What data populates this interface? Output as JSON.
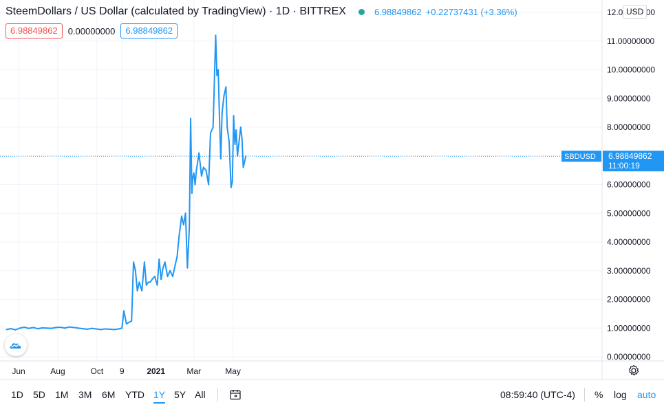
{
  "header": {
    "title": "SteemDollars / US Dollar (calculated by TradingView) · 1D · BITTREX",
    "last_price": "6.98849862",
    "change": "+0.22737431 (+3.36%)",
    "status_color": "#26a69a"
  },
  "ohlc": {
    "left_pill": "6.98849862",
    "middle": "0.00000000",
    "right_pill": "6.98849862"
  },
  "currency_badge": "USD",
  "price_label": {
    "symbol": "SBDUSD",
    "price": "6.98849862",
    "countdown": "11:00:19"
  },
  "colors": {
    "line": "#2196f3",
    "grid": "#f0f3fa",
    "text": "#131722",
    "accent": "#2196f3",
    "down": "#ef5350"
  },
  "bottom_bar": {
    "ranges": [
      "1D",
      "5D",
      "1M",
      "3M",
      "6M",
      "YTD",
      "1Y",
      "5Y",
      "All"
    ],
    "active_range": "1Y",
    "clock": "08:59:40 (UTC-4)",
    "percent_label": "%",
    "log_label": "log",
    "auto_label": "auto"
  },
  "icons": {
    "logo": "tradingview-logo-icon",
    "calendar": "calendar-goto-date-icon",
    "settings": "gear-icon"
  },
  "chart_data": {
    "type": "line",
    "series_name": "SBDUSD",
    "x_tick_labels": [
      "Jun",
      "Aug",
      "Oct",
      "9",
      "2021",
      "Mar",
      "May"
    ],
    "y_tick_labels": [
      "0.00000000",
      "1.00000000",
      "2.00000000",
      "3.00000000",
      "4.00000000",
      "5.00000000",
      "6.00000000",
      "7.00000000",
      "8.00000000",
      "9.00000000",
      "10.00000000",
      "11.00000000",
      "12.00000000"
    ],
    "ylim": [
      0,
      12
    ],
    "last_value": 6.98849862,
    "grid": true,
    "x": [
      "2020-05-13",
      "2020-05-20",
      "2020-05-27",
      "2020-06-03",
      "2020-06-10",
      "2020-06-17",
      "2020-06-24",
      "2020-07-01",
      "2020-07-08",
      "2020-07-15",
      "2020-07-22",
      "2020-07-29",
      "2020-08-05",
      "2020-08-12",
      "2020-08-19",
      "2020-08-26",
      "2020-09-02",
      "2020-09-09",
      "2020-09-16",
      "2020-09-23",
      "2020-09-30",
      "2020-10-07",
      "2020-10-14",
      "2020-10-21",
      "2020-10-28",
      "2020-11-04",
      "2020-11-09",
      "2020-11-12",
      "2020-11-16",
      "2020-11-20",
      "2020-11-24",
      "2020-11-27",
      "2020-11-30",
      "2020-12-03",
      "2020-12-06",
      "2020-12-10",
      "2020-12-14",
      "2020-12-17",
      "2020-12-20",
      "2020-12-23",
      "2020-12-26",
      "2020-12-30",
      "2021-01-03",
      "2021-01-06",
      "2021-01-09",
      "2021-01-12",
      "2021-01-15",
      "2021-01-19",
      "2021-01-23",
      "2021-01-27",
      "2021-01-31",
      "2021-02-03",
      "2021-02-06",
      "2021-02-10",
      "2021-02-13",
      "2021-02-16",
      "2021-02-19",
      "2021-02-22",
      "2021-02-24",
      "2021-02-26",
      "2021-02-27",
      "2021-03-01",
      "2021-03-03",
      "2021-03-05",
      "2021-03-09",
      "2021-03-13",
      "2021-03-16",
      "2021-03-20",
      "2021-03-24",
      "2021-03-27",
      "2021-03-31",
      "2021-04-04",
      "2021-04-06",
      "2021-04-08",
      "2021-04-10",
      "2021-04-12",
      "2021-04-14",
      "2021-04-17",
      "2021-04-20",
      "2021-04-22",
      "2021-04-25",
      "2021-04-28",
      "2021-04-30",
      "2021-05-02",
      "2021-05-04",
      "2021-05-06",
      "2021-05-08",
      "2021-05-10",
      "2021-05-13",
      "2021-05-15",
      "2021-05-17",
      "2021-05-19",
      "2021-05-21"
    ],
    "values": [
      0.95,
      0.98,
      0.94,
      1.0,
      1.03,
      0.99,
      1.02,
      0.98,
      1.01,
      1.0,
      0.99,
      1.02,
      1.03,
      1.0,
      1.04,
      1.02,
      1.0,
      0.98,
      0.96,
      0.99,
      0.97,
      0.95,
      0.97,
      0.96,
      0.95,
      0.97,
      1.0,
      1.6,
      1.15,
      1.2,
      1.25,
      3.3,
      3.0,
      2.3,
      2.6,
      2.3,
      3.3,
      2.5,
      2.6,
      2.6,
      2.7,
      2.8,
      2.5,
      3.4,
      2.7,
      3.1,
      3.3,
      2.8,
      3.0,
      2.8,
      3.2,
      3.5,
      4.2,
      4.9,
      4.6,
      5.0,
      3.1,
      4.5,
      8.3,
      5.7,
      6.2,
      6.4,
      6.0,
      6.5,
      7.1,
      6.3,
      6.6,
      6.5,
      6.0,
      7.8,
      8.0,
      11.2,
      9.8,
      10.0,
      8.3,
      6.9,
      8.5,
      9.1,
      9.4,
      8.0,
      7.5,
      5.9,
      6.1,
      8.4,
      7.4,
      7.9,
      7.0,
      7.4,
      8.0,
      7.6,
      6.6,
      6.8,
      6.98849862
    ]
  }
}
